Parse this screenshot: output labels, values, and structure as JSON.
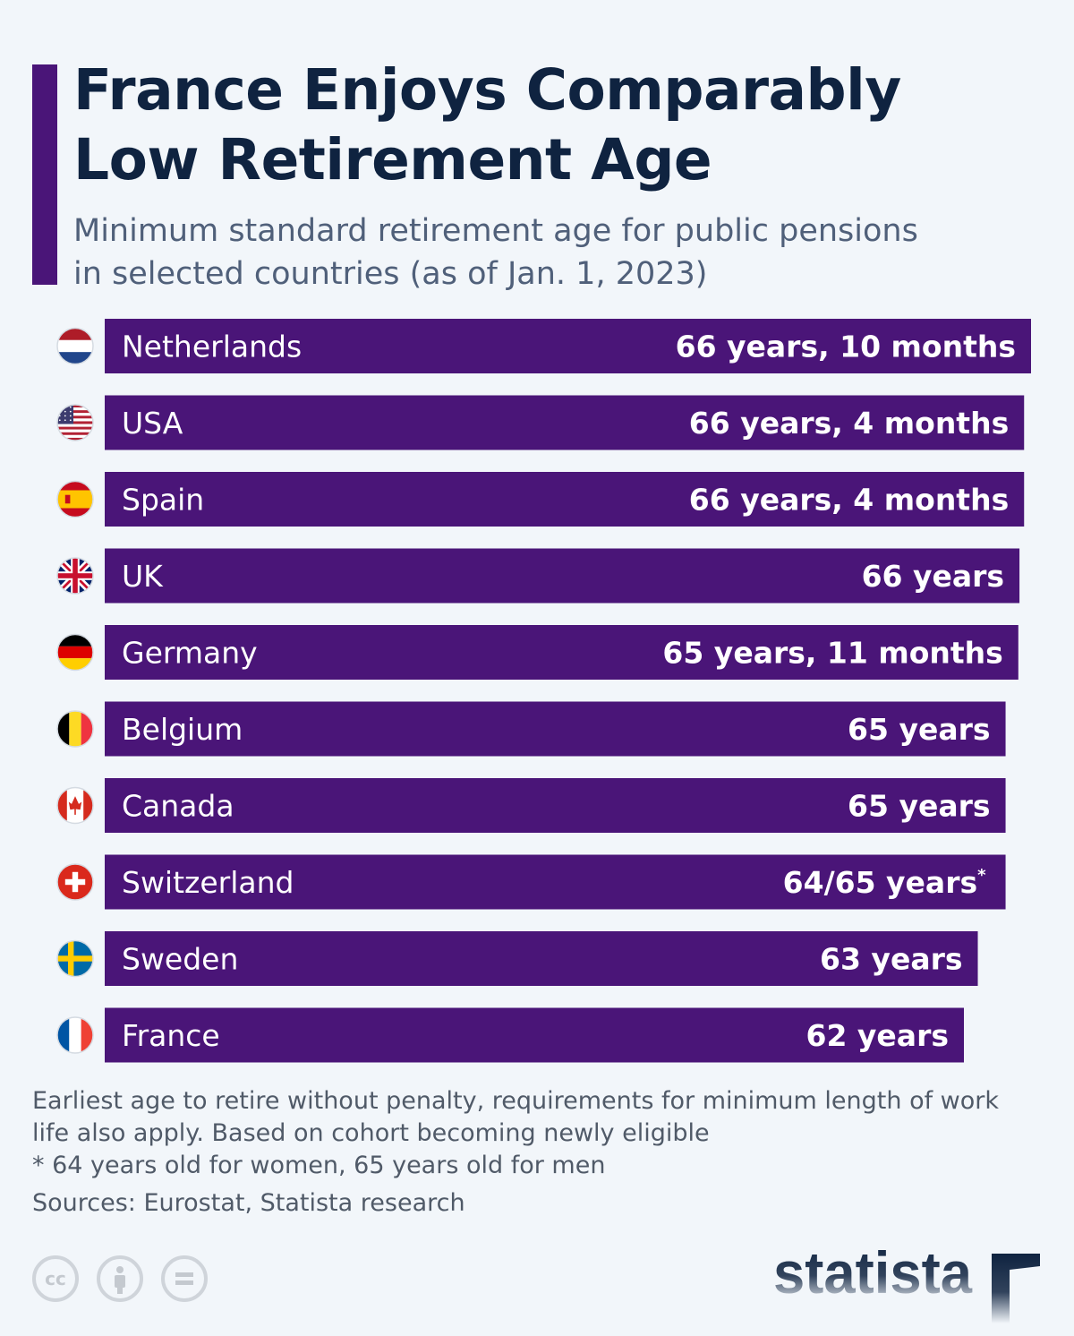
{
  "title_line1": "France Enjoys Comparably",
  "title_line2": "Low Retirement Age",
  "subtitle_line1": "Minimum standard retirement age for public pensions",
  "subtitle_line2": "in selected countries (as of Jan. 1, 2023)",
  "colors": {
    "bar": "#4a1578",
    "title": "#0f2340",
    "accent": "#4a1578",
    "background": "#f2f6fa"
  },
  "chart_data": {
    "type": "bar",
    "orientation": "horizontal",
    "categories": [
      "Netherlands",
      "USA",
      "Spain",
      "UK",
      "Germany",
      "Belgium",
      "Canada",
      "Switzerland",
      "Sweden",
      "France"
    ],
    "values": [
      66.833,
      66.333,
      66.333,
      66.0,
      65.917,
      65.0,
      65.0,
      65.0,
      63.0,
      62.0
    ],
    "value_labels": [
      "66 years, 10 months",
      "66 years, 4 months",
      "66 years, 4 months",
      "66 years",
      "65 years, 11 months",
      "65 years",
      "65 years",
      "64/65 years",
      "63 years",
      "62 years"
    ],
    "value_label_notes": [
      "",
      "",
      "",
      "",
      "",
      "",
      "",
      "*",
      "",
      ""
    ],
    "flags": [
      "netherlands-flag",
      "usa-flag",
      "spain-flag",
      "uk-flag",
      "germany-flag",
      "belgium-flag",
      "canada-flag",
      "switzerland-flag",
      "sweden-flag",
      "france-flag"
    ]
  },
  "notes": {
    "line1": "Earliest age to retire without penalty, requirements for minimum length of work",
    "line2": "life also apply. Based on cohort becoming newly eligible",
    "line3": "* 64 years old for women, 65 years old for men",
    "sources": "Sources: Eurostat, Statista research"
  },
  "license_icons": [
    "creative-commons-icon",
    "attribution-icon",
    "no-derivatives-icon"
  ],
  "logo_text": "statista"
}
